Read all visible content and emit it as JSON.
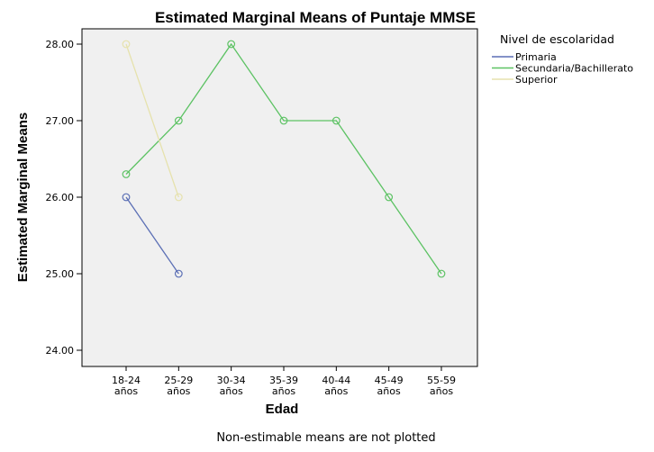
{
  "chart_data": {
    "type": "line",
    "title": "Estimated Marginal Means of Puntaje MMSE",
    "xlabel": "Edad",
    "ylabel": "Estimated Marginal Means",
    "categories": [
      [
        "18-24",
        "años"
      ],
      [
        "25-29",
        "años"
      ],
      [
        "30-34",
        "años"
      ],
      [
        "35-39",
        "años"
      ],
      [
        "40-44",
        "años"
      ],
      [
        "45-49",
        "años"
      ],
      [
        "55-59",
        "años"
      ]
    ],
    "ylim": [
      24.0,
      28.0
    ],
    "yticks": [
      "24.00",
      "25.00",
      "26.00",
      "27.00",
      "28.00"
    ],
    "ytick_values": [
      24,
      25,
      26,
      27,
      28
    ],
    "legend_title": "Nivel de escolaridad",
    "legend_position": "right",
    "grid": false,
    "plot_background": "#f0f0f0",
    "series": [
      {
        "name": "Primaria",
        "color": "#5b6fb5",
        "values": [
          26.0,
          25.0,
          null,
          null,
          null,
          null,
          null
        ]
      },
      {
        "name": "Secundaria/Bachillerato",
        "color": "#5cc263",
        "values": [
          26.3,
          27.0,
          28.0,
          27.0,
          27.0,
          26.0,
          25.0
        ]
      },
      {
        "name": "Superior",
        "color": "#e6e2ad",
        "values": [
          28.0,
          26.0,
          null,
          null,
          null,
          null,
          null
        ]
      }
    ],
    "footnote": "Non-estimable means are not plotted"
  }
}
